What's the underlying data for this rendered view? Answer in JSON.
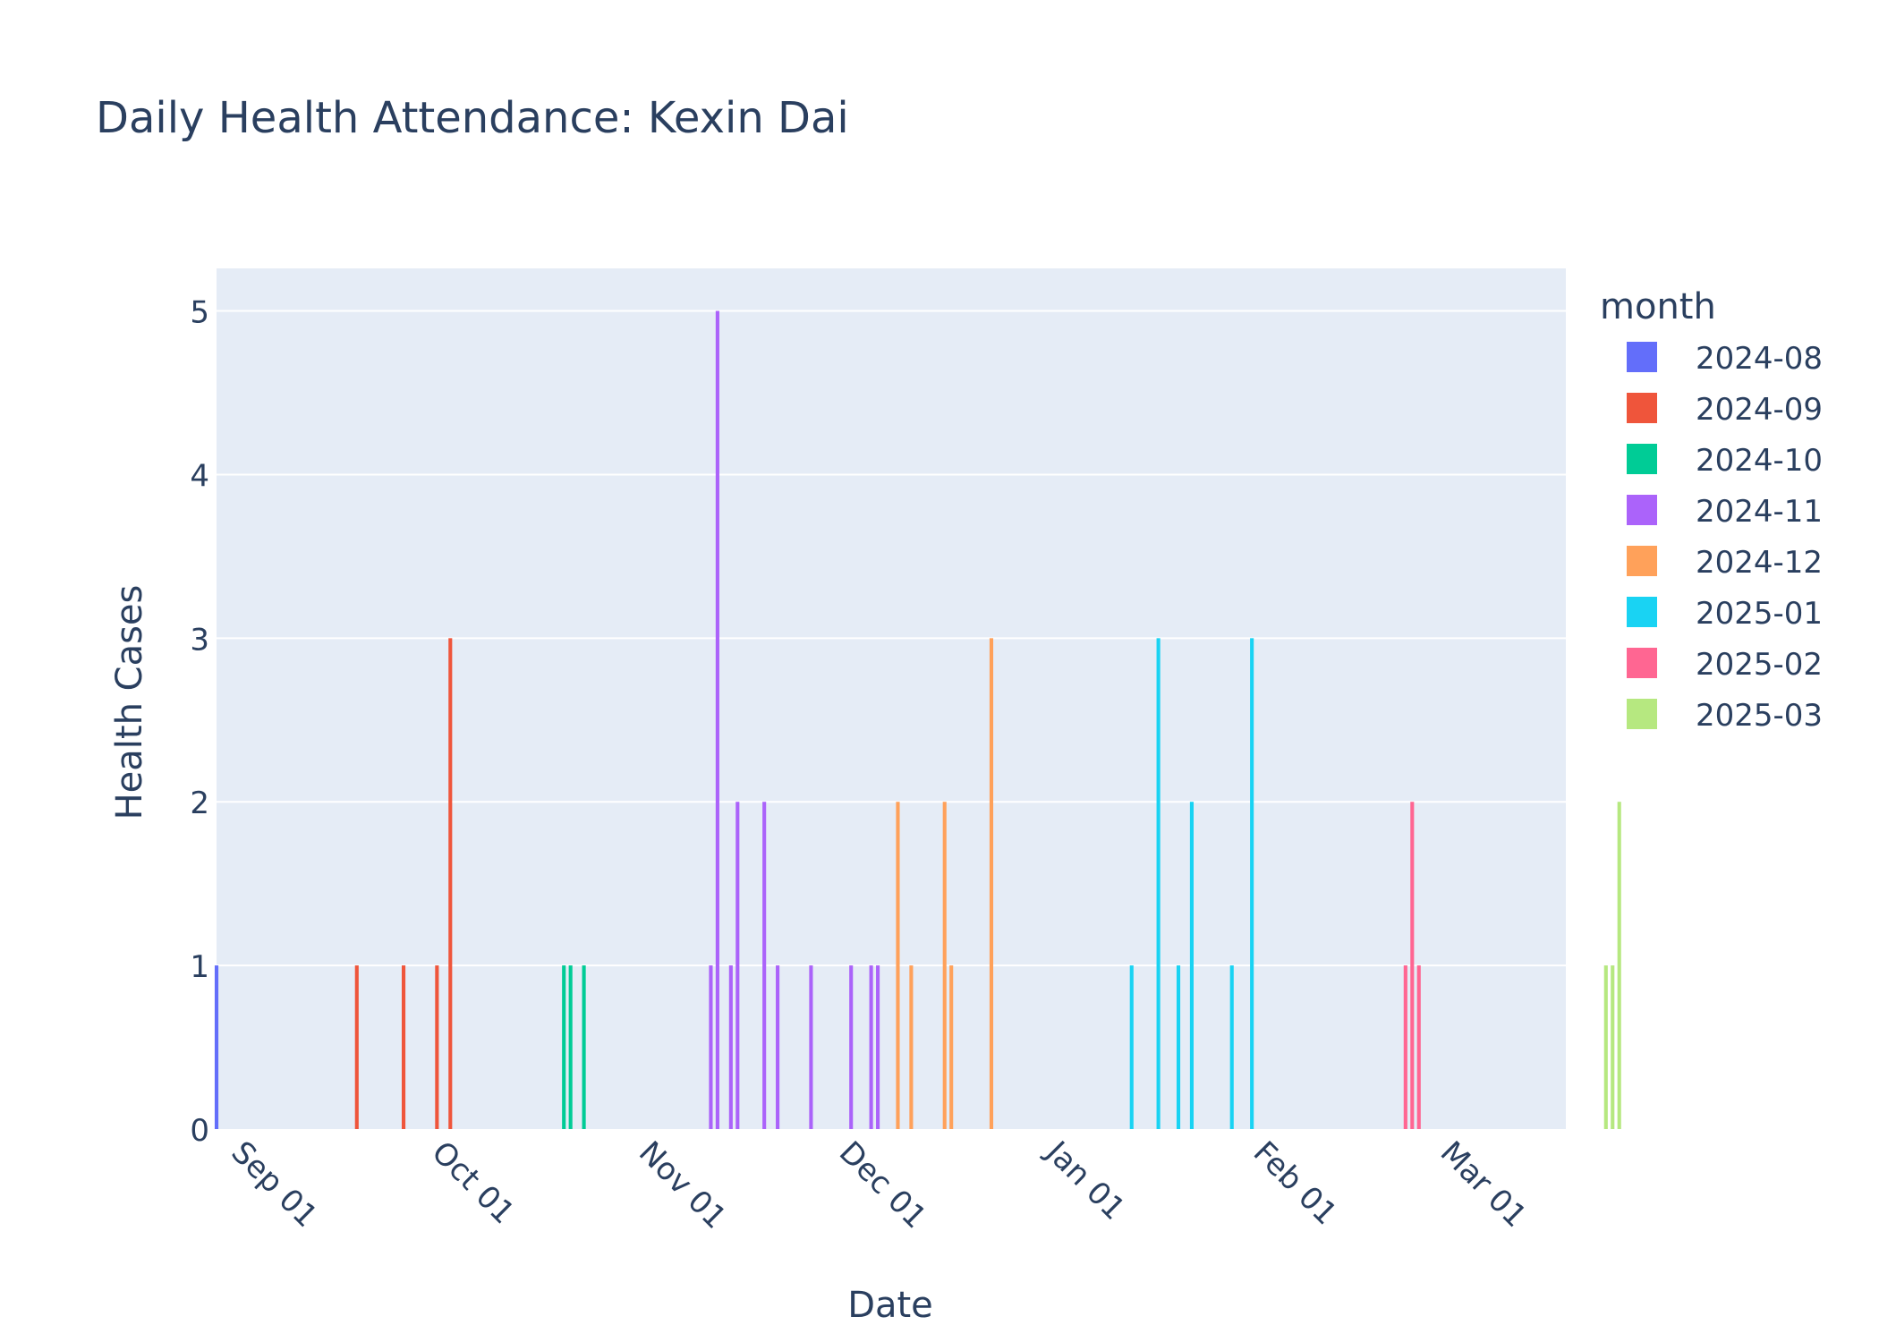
{
  "chart_data": {
    "type": "bar",
    "title": "Daily Health Attendance: Kexin Dai",
    "xlabel": "Date",
    "ylabel": "Health Cases",
    "ylim": [
      0,
      5.26
    ],
    "xlim": [
      "2024-08-30",
      "2025-03-20"
    ],
    "grid": true,
    "legend": {
      "title": "month",
      "placement": "right"
    },
    "x_ticks": [
      {
        "date": "2024-09-01",
        "label": "Sep 01"
      },
      {
        "date": "2024-10-01",
        "label": "Oct 01"
      },
      {
        "date": "2024-11-01",
        "label": "Nov 01"
      },
      {
        "date": "2024-12-01",
        "label": "Dec 01"
      },
      {
        "date": "2025-01-01",
        "label": "Jan 01"
      },
      {
        "date": "2025-02-01",
        "label": "Feb 01"
      },
      {
        "date": "2025-03-01",
        "label": "Mar 01"
      }
    ],
    "y_ticks": [
      0,
      1,
      2,
      3,
      4,
      5
    ],
    "series": [
      {
        "name": "2024-08",
        "color": "#636efa",
        "points": [
          [
            "2024-08-30",
            1
          ]
        ]
      },
      {
        "name": "2024-09",
        "color": "#ef553b",
        "points": [
          [
            "2024-09-20",
            1
          ],
          [
            "2024-09-27",
            1
          ],
          [
            "2024-10-02",
            1
          ],
          [
            "2024-10-04",
            3
          ]
        ]
      },
      {
        "name": "2024-10",
        "color": "#00cc96",
        "points": [
          [
            "2024-10-21",
            1
          ],
          [
            "2024-10-22",
            1
          ],
          [
            "2024-10-24",
            1
          ]
        ]
      },
      {
        "name": "2024-11",
        "color": "#ab63fa",
        "points": [
          [
            "2024-11-12",
            1
          ],
          [
            "2024-11-13",
            5
          ],
          [
            "2024-11-15",
            1
          ],
          [
            "2024-11-16",
            2
          ],
          [
            "2024-11-20",
            2
          ],
          [
            "2024-11-22",
            1
          ],
          [
            "2024-11-27",
            1
          ],
          [
            "2024-12-03",
            1
          ],
          [
            "2024-12-06",
            1
          ],
          [
            "2024-12-07",
            1
          ]
        ]
      },
      {
        "name": "2024-12",
        "color": "#ffa15a",
        "points": [
          [
            "2024-12-10",
            2
          ],
          [
            "2024-12-12",
            1
          ],
          [
            "2024-12-17",
            2
          ],
          [
            "2024-12-18",
            1
          ],
          [
            "2024-12-24",
            3
          ]
        ]
      },
      {
        "name": "2025-01",
        "color": "#19d3f3",
        "points": [
          [
            "2025-01-14",
            1
          ],
          [
            "2025-01-18",
            3
          ],
          [
            "2025-01-21",
            1
          ],
          [
            "2025-01-23",
            2
          ],
          [
            "2025-01-29",
            1
          ],
          [
            "2025-02-01",
            3
          ]
        ]
      },
      {
        "name": "2025-02",
        "color": "#ff6692",
        "points": [
          [
            "2025-02-24",
            1
          ],
          [
            "2025-02-25",
            2
          ],
          [
            "2025-02-26",
            1
          ]
        ]
      },
      {
        "name": "2025-03",
        "color": "#b6e880",
        "points": [
          [
            "2025-03-26",
            1
          ],
          [
            "2025-03-27",
            1
          ],
          [
            "2025-03-28",
            2
          ]
        ]
      }
    ]
  },
  "colors": {
    "plot_background": "#e5ecf6",
    "grid": "#ffffff",
    "text": "#2a3f5f"
  }
}
